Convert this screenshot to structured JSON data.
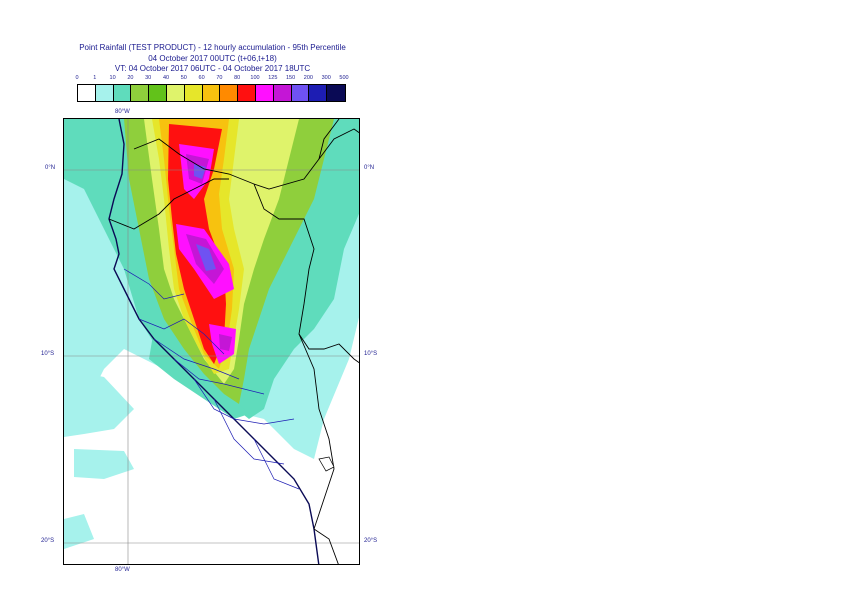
{
  "title": {
    "line1": "Point Rainfall (TEST PRODUCT) - 12 hourly accumulation - 95th Percentile",
    "line2": "04 October 2017 00UTC (t+06,t+18)",
    "line3": "VT: 04 October 2017 06UTC - 04 October 2017 18UTC"
  },
  "legend": {
    "thresholds": [
      "0",
      "1",
      "10",
      "20",
      "30",
      "40",
      "50",
      "60",
      "70",
      "80",
      "100",
      "125",
      "150",
      "200",
      "300",
      "500"
    ],
    "colors": [
      "#ffffff",
      "#a6f2ec",
      "#5fdcbc",
      "#8fcf3c",
      "#62c21a",
      "#dff36b",
      "#e6e62a",
      "#f7c20f",
      "#ff8a00",
      "#ff1010",
      "#ff10ff",
      "#c416d6",
      "#6f52f2",
      "#1d1db3",
      "#0a0a55"
    ]
  },
  "map": {
    "lon_label_top": "80°W",
    "lon_label_bottom": "80°W",
    "lat_labels": {
      "eq_left": "0°N",
      "eq_right": "0°N",
      "s10_left": "10°S",
      "s10_right": "10°S",
      "s20_left": "20°S",
      "s20_right": "20°S"
    }
  }
}
